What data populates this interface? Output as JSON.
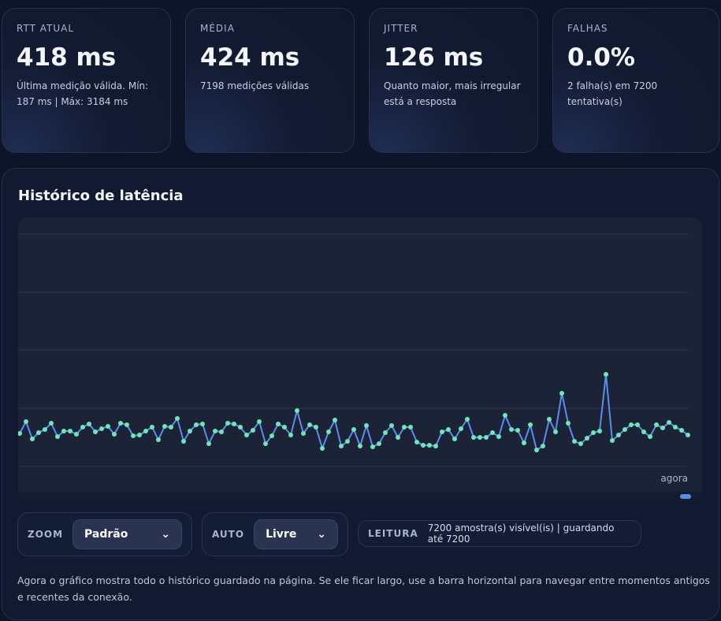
{
  "cards": [
    {
      "label": "RTT ATUAL",
      "value": "418 ms",
      "note": "Última medição válida. Mín: 187 ms | Máx: 3184 ms"
    },
    {
      "label": "MÉDIA",
      "value": "424 ms",
      "note": "7198 medições válidas"
    },
    {
      "label": "JITTER",
      "value": "126 ms",
      "note": "Quanto maior, mais irregular está a resposta"
    },
    {
      "label": "FALHAS",
      "value": "0.0%",
      "note": "2 falha(s) em 7200 tentativa(s)"
    }
  ],
  "panel": {
    "title": "Histórico de latência",
    "controls": {
      "zoom_label": "ZOOM",
      "zoom_value": "Padrão",
      "auto_label": "AUTO",
      "auto_value": "Livre",
      "reading_label": "LEITURA",
      "reading_value": "7200 amostra(s) visível(is) | guardando até 7200"
    },
    "footer": "Agora o gráfico mostra todo o histórico guardado na página. Se ele ficar largo, use a barra horizontal para navegar entre momentos antigos e recentes da conexão."
  },
  "chart_data": {
    "type": "line",
    "annotation": "agora",
    "color": "#5b8def",
    "point_color": "#6ee7b7",
    "ylim": [
      0,
      2950
    ],
    "values": [
      420,
      570,
      350,
      430,
      470,
      550,
      380,
      450,
      450,
      410,
      500,
      540,
      440,
      480,
      510,
      410,
      550,
      530,
      390,
      400,
      450,
      500,
      340,
      510,
      500,
      610,
      320,
      450,
      530,
      540,
      290,
      450,
      440,
      550,
      540,
      500,
      400,
      460,
      570,
      290,
      390,
      540,
      500,
      400,
      710,
      420,
      530,
      500,
      230,
      440,
      590,
      260,
      320,
      470,
      260,
      520,
      250,
      290,
      430,
      520,
      370,
      500,
      500,
      310,
      270,
      270,
      260,
      440,
      470,
      350,
      480,
      600,
      370,
      370,
      370,
      430,
      380,
      650,
      470,
      460,
      300,
      530,
      210,
      260,
      600,
      440,
      930,
      550,
      320,
      290,
      360,
      430,
      450,
      1170,
      330,
      400,
      470,
      530,
      530,
      440,
      380,
      530,
      490,
      560,
      500,
      460,
      400
    ]
  }
}
